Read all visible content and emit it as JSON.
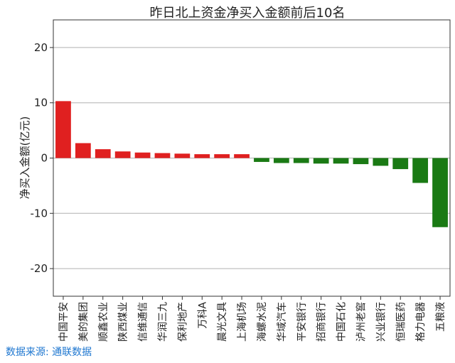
{
  "chart_data": {
    "type": "bar",
    "title": "昨日北上资金净买入金额前后10名",
    "ylabel": "净买入金额(亿元)",
    "xlabel": "",
    "ylim": [
      -25,
      25
    ],
    "yticks": [
      20,
      10,
      0,
      -10,
      -20
    ],
    "ytick_labels": [
      "20",
      "10",
      "0",
      "-10",
      "-20"
    ],
    "grid": "horizontal",
    "categories": [
      "中国平安",
      "美的集团",
      "顺鑫农业",
      "陕西煤业",
      "信维通信",
      "华润三九",
      "保利地产",
      "万科A",
      "晨光文具",
      "上海机场",
      "海螺水泥",
      "华域汽车",
      "平安银行",
      "招商银行",
      "中国石化",
      "泸州老窖",
      "兴业银行",
      "恒瑞医药",
      "格力电器",
      "五粮液"
    ],
    "values": [
      10.3,
      2.7,
      1.6,
      1.2,
      1.0,
      0.9,
      0.8,
      0.7,
      0.7,
      0.7,
      -0.7,
      -0.9,
      -0.9,
      -1.0,
      -1.0,
      -1.1,
      -1.4,
      -2.0,
      -4.5,
      -12.5
    ],
    "colors": {
      "positive": "#e02020",
      "negative": "#1a7a14",
      "grid": "#b0b0b0",
      "axis": "#333333"
    }
  },
  "source_note": "数据来源: 通联数据"
}
